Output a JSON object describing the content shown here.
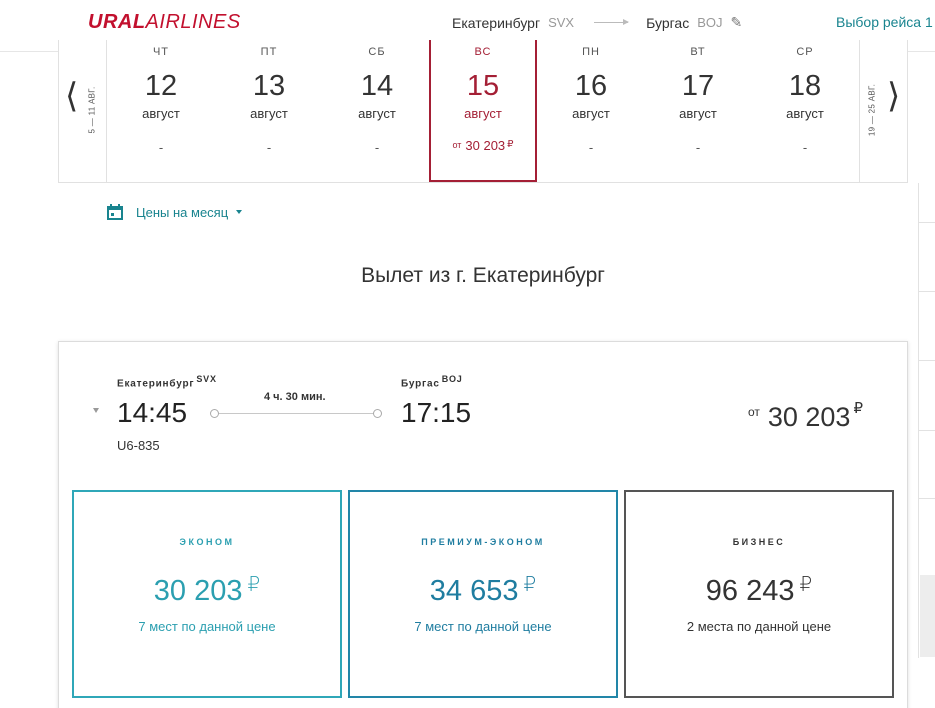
{
  "header": {
    "logo_bold": "URAL",
    "logo_light": "AIRLINES",
    "origin_city": "Екатеринбург",
    "origin_code": "SVX",
    "destination_city": "Бургас",
    "destination_code": "BOJ",
    "choose_flight": "Выбор рейса 1",
    "brand_color": "#c2102e",
    "accent_color": "#19848f"
  },
  "dates": {
    "prev_range": "5 — 11 АВГ.",
    "next_range": "19 — 25 АВГ.",
    "days": [
      {
        "dow": "чт",
        "num": "12",
        "month": "август",
        "price": "-"
      },
      {
        "dow": "пт",
        "num": "13",
        "month": "август",
        "price": "-"
      },
      {
        "dow": "сб",
        "num": "14",
        "month": "август",
        "price": "-"
      },
      {
        "dow": "вс",
        "num": "15",
        "month": "август",
        "price_from": "от",
        "price": "30 203",
        "currency": "₽",
        "selected": true
      },
      {
        "dow": "пн",
        "num": "16",
        "month": "август",
        "price": "-"
      },
      {
        "dow": "вт",
        "num": "17",
        "month": "август",
        "price": "-"
      },
      {
        "dow": "ср",
        "num": "18",
        "month": "август",
        "price": "-"
      }
    ],
    "selected_color": "#a41f35"
  },
  "month_prices": {
    "label": "Цены на месяц"
  },
  "section_title": "Вылет из г. Екатеринбург",
  "flight": {
    "departure_city": "Екатеринбург",
    "departure_code": "SVX",
    "departure_time": "14:45",
    "arrival_city": "Бургас",
    "arrival_code": "BOJ",
    "arrival_time": "17:15",
    "duration": "4 ч. 30 мин.",
    "flight_number": "U6-835",
    "min_price_from": "от",
    "min_price": "30 203",
    "currency": "₽",
    "fares": [
      {
        "class": "ЭКОНОМ",
        "price": "30 203",
        "currency": "₽",
        "seats": "7 мест по данной цене",
        "color": "#2b9fb0"
      },
      {
        "class": "ПРЕМИУМ-ЭКОНОМ",
        "price": "34 653",
        "currency": "₽",
        "seats": "7 мест по данной цене",
        "color": "#1f7da0"
      },
      {
        "class": "БИЗНЕС",
        "price": "96 243",
        "currency": "₽",
        "seats": "2 места по данной цене",
        "color": "#333333"
      }
    ]
  }
}
